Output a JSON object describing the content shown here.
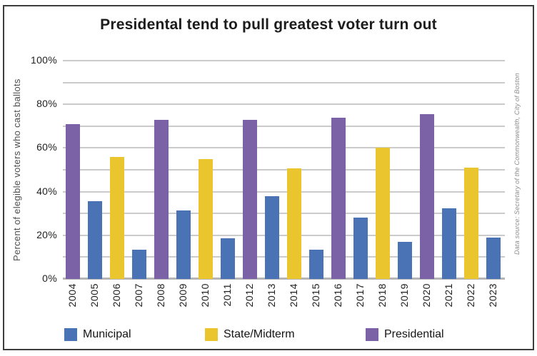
{
  "header": {
    "title": "Presidental tend to pull greatest voter turn out"
  },
  "source_note": "Data source: Secretary of the Commonwealth, City of Boston",
  "colors": {
    "municipal_blue": "#4a73b5",
    "state_midterm_yellow": "#ebc52d",
    "presidential_purple": "#7b61a6",
    "gridline_gray": "#cbcbcb",
    "baseline_gray": "#b5b5b5"
  },
  "chart_data": {
    "type": "bar",
    "title": "Presidental tend to pull greatest voter turn out",
    "xlabel": "",
    "ylabel": "Percent of elegible voters who cast ballots",
    "ylim": [
      0,
      100
    ],
    "grid": "horizontal lines every 10%",
    "legend_position": "bottom",
    "ytick_labels": [
      "0%",
      "20%",
      "40%",
      "60%",
      "80%",
      "100%"
    ],
    "ytick_values": [
      0,
      20,
      40,
      60,
      80,
      100
    ],
    "categories": [
      "2004",
      "2005",
      "2006",
      "2007",
      "2008",
      "2009",
      "2010",
      "2011",
      "2012",
      "2013",
      "2014",
      "2015",
      "2016",
      "2017",
      "2018",
      "2019",
      "2020",
      "2021",
      "2022",
      "2023"
    ],
    "points": [
      {
        "year": "2004",
        "series": "Presidential",
        "value": 71
      },
      {
        "year": "2005",
        "series": "Municipal",
        "value": 35.5
      },
      {
        "year": "2006",
        "series": "State/Midterm",
        "value": 56
      },
      {
        "year": "2007",
        "series": "Municipal",
        "value": 13.5
      },
      {
        "year": "2008",
        "series": "Presidential",
        "value": 73
      },
      {
        "year": "2009",
        "series": "Municipal",
        "value": 31.5
      },
      {
        "year": "2010",
        "series": "State/Midterm",
        "value": 55
      },
      {
        "year": "2011",
        "series": "Municipal",
        "value": 18.5
      },
      {
        "year": "2012",
        "series": "Presidential",
        "value": 73
      },
      {
        "year": "2013",
        "series": "Municipal",
        "value": 38
      },
      {
        "year": "2014",
        "series": "State/Midterm",
        "value": 50.5
      },
      {
        "year": "2015",
        "series": "Municipal",
        "value": 13.5
      },
      {
        "year": "2016",
        "series": "Presidential",
        "value": 74
      },
      {
        "year": "2017",
        "series": "Municipal",
        "value": 28
      },
      {
        "year": "2018",
        "series": "State/Midterm",
        "value": 60
      },
      {
        "year": "2019",
        "series": "Municipal",
        "value": 17
      },
      {
        "year": "2020",
        "series": "Presidential",
        "value": 75.5
      },
      {
        "year": "2021",
        "series": "Municipal",
        "value": 32.5
      },
      {
        "year": "2022",
        "series": "State/Midterm",
        "value": 51
      },
      {
        "year": "2023",
        "series": "Municipal",
        "value": 19
      }
    ],
    "legend": [
      {
        "label": "Municipal",
        "color": "#4a73b5"
      },
      {
        "label": "State/Midterm",
        "color": "#ebc52d"
      },
      {
        "label": "Presidential",
        "color": "#7b61a6"
      }
    ]
  }
}
